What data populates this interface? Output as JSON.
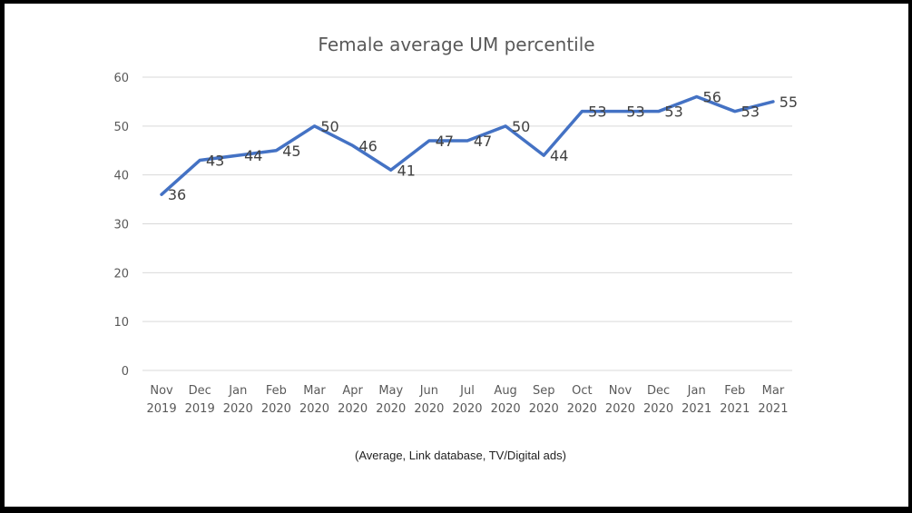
{
  "chart_data": {
    "type": "line",
    "title": "Female average UM percentile",
    "caption": "(Average, Link database, TV/Digital  ads)",
    "categories": [
      [
        "Nov",
        "2019"
      ],
      [
        "Dec",
        "2019"
      ],
      [
        "Jan",
        "2020"
      ],
      [
        "Feb",
        "2020"
      ],
      [
        "Mar",
        "2020"
      ],
      [
        "Apr",
        "2020"
      ],
      [
        "May",
        "2020"
      ],
      [
        "Jun",
        "2020"
      ],
      [
        "Jul",
        "2020"
      ],
      [
        "Aug",
        "2020"
      ],
      [
        "Sep",
        "2020"
      ],
      [
        "Oct",
        "2020"
      ],
      [
        "Nov",
        "2020"
      ],
      [
        "Dec",
        "2020"
      ],
      [
        "Jan",
        "2021"
      ],
      [
        "Feb",
        "2021"
      ],
      [
        "Mar",
        "2021"
      ]
    ],
    "series": [
      {
        "values": [
          36,
          43,
          44,
          45,
          50,
          46,
          41,
          47,
          47,
          50,
          44,
          53,
          53,
          53,
          56,
          53,
          55
        ]
      }
    ],
    "ylim": [
      0,
      60
    ],
    "yticks": [
      0,
      10,
      20,
      30,
      40,
      50,
      60
    ],
    "grid": true,
    "legend": "none",
    "line_color": "#4472C4"
  }
}
